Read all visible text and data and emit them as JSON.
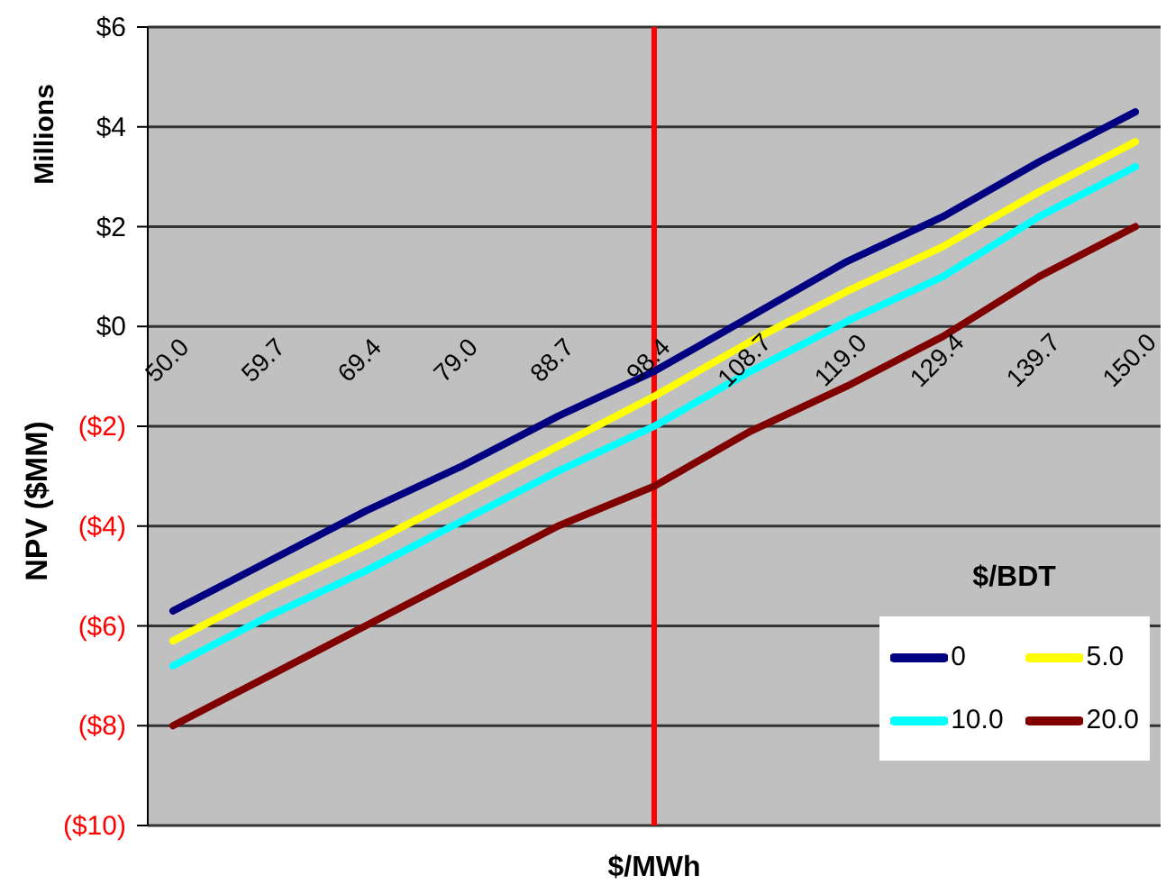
{
  "chart_data": {
    "type": "line",
    "xlabel": "$/MWh",
    "ylabel": "NPV ($MM)",
    "legend_title": "$/BDT",
    "annotations": [
      "Millions"
    ],
    "categories": [
      "50.0",
      "59.7",
      "69.4",
      "79.0",
      "88.7",
      "98.4",
      "108.7",
      "119.0",
      "129.4",
      "139.7",
      "150.0"
    ],
    "series": [
      {
        "name": "0",
        "color": "#000080",
        "values": [
          -5.7,
          -4.7,
          -3.7,
          -2.8,
          -1.8,
          -0.9,
          0.2,
          1.3,
          2.2,
          3.3,
          4.3
        ]
      },
      {
        "name": "5.0",
        "color": "#ffff00",
        "values": [
          -6.3,
          -5.3,
          -4.4,
          -3.4,
          -2.4,
          -1.4,
          -0.3,
          0.7,
          1.6,
          2.7,
          3.7
        ]
      },
      {
        "name": "10.0",
        "color": "#00ffff",
        "values": [
          -6.8,
          -5.8,
          -4.9,
          -3.9,
          -2.9,
          -2.0,
          -0.9,
          0.1,
          1.0,
          2.2,
          3.2
        ]
      },
      {
        "name": "20.0",
        "color": "#800000",
        "values": [
          -8.0,
          -7.0,
          -6.0,
          -5.0,
          -4.0,
          -3.2,
          -2.1,
          -1.2,
          -0.2,
          1.0,
          2.0
        ]
      }
    ],
    "ylim": [
      -10,
      6
    ],
    "yticks": [
      {
        "value": -10,
        "label": "($10)"
      },
      {
        "value": -8,
        "label": "($8)"
      },
      {
        "value": -6,
        "label": "($6)"
      },
      {
        "value": -4,
        "label": "($4)"
      },
      {
        "value": -2,
        "label": "($2)"
      },
      {
        "value": 0,
        "label": "$0"
      },
      {
        "value": 2,
        "label": "$2"
      },
      {
        "value": 4,
        "label": "$4"
      },
      {
        "value": 6,
        "label": "$6"
      }
    ],
    "ref_lines": [
      {
        "axis": "x",
        "value": "98.4",
        "color": "#ff0000"
      }
    ],
    "grid": "y",
    "legend": "bottom right",
    "marker": "none",
    "line_style": "solid"
  }
}
